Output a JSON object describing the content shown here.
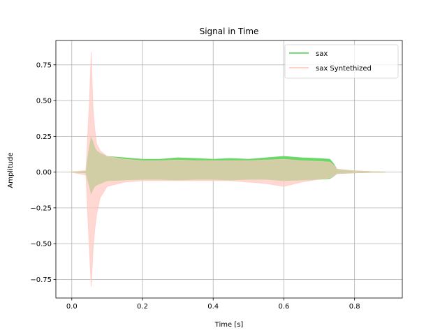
{
  "chart_data": {
    "type": "area",
    "title": "Signal in Time",
    "xlabel": "Time [s]",
    "ylabel": "Amplitude",
    "xlim": [
      -0.045,
      0.935
    ],
    "ylim": [
      -0.88,
      0.92
    ],
    "x_ticks": [
      0.0,
      0.2,
      0.4,
      0.6,
      0.8
    ],
    "x_tick_labels": [
      "0.0",
      "0.2",
      "0.4",
      "0.6",
      "0.8"
    ],
    "y_ticks": [
      -0.75,
      -0.5,
      -0.25,
      0.0,
      0.25,
      0.5,
      0.75
    ],
    "y_tick_labels": [
      "−0.75",
      "−0.50",
      "−0.25",
      "0.00",
      "0.25",
      "0.50",
      "0.75"
    ],
    "grid": true,
    "legend_position": "top-right",
    "series": [
      {
        "name": "sax",
        "color": "#66d966",
        "x": [
          0.0,
          0.04,
          0.05,
          0.055,
          0.06,
          0.065,
          0.07,
          0.08,
          0.1,
          0.15,
          0.2,
          0.25,
          0.3,
          0.35,
          0.4,
          0.45,
          0.5,
          0.55,
          0.6,
          0.65,
          0.7,
          0.73,
          0.74,
          0.75,
          0.8,
          0.85,
          0.885
        ],
        "upper": [
          0.002,
          0.005,
          0.18,
          0.24,
          0.21,
          0.17,
          0.15,
          0.13,
          0.11,
          0.1,
          0.09,
          0.09,
          0.1,
          0.095,
          0.09,
          0.095,
          0.09,
          0.1,
          0.11,
          0.1,
          0.095,
          0.09,
          0.06,
          0.02,
          0.008,
          0.003,
          0.001
        ],
        "lower": [
          -0.002,
          -0.005,
          -0.1,
          -0.15,
          -0.12,
          -0.1,
          -0.09,
          -0.08,
          -0.06,
          -0.055,
          -0.05,
          -0.05,
          -0.055,
          -0.05,
          -0.05,
          -0.055,
          -0.05,
          -0.05,
          -0.06,
          -0.055,
          -0.05,
          -0.045,
          -0.03,
          -0.01,
          -0.005,
          -0.002,
          -0.001
        ]
      },
      {
        "name": "sax Syntethized",
        "color": "#ffc8c0",
        "x": [
          0.0,
          0.04,
          0.05,
          0.055,
          0.06,
          0.065,
          0.07,
          0.08,
          0.1,
          0.15,
          0.2,
          0.25,
          0.3,
          0.35,
          0.4,
          0.45,
          0.5,
          0.55,
          0.6,
          0.65,
          0.7,
          0.73,
          0.74,
          0.75,
          0.8,
          0.85,
          0.885
        ],
        "upper": [
          0.002,
          0.01,
          0.5,
          0.84,
          0.45,
          0.3,
          0.2,
          0.15,
          0.11,
          0.09,
          0.08,
          0.08,
          0.085,
          0.08,
          0.08,
          0.08,
          0.08,
          0.085,
          0.09,
          0.08,
          0.075,
          0.07,
          0.05,
          0.02,
          0.008,
          0.003,
          0.001
        ],
        "lower": [
          -0.002,
          -0.02,
          -0.55,
          -0.8,
          -0.55,
          -0.4,
          -0.3,
          -0.18,
          -0.1,
          -0.07,
          -0.06,
          -0.06,
          -0.06,
          -0.06,
          -0.06,
          -0.06,
          -0.07,
          -0.08,
          -0.1,
          -0.07,
          -0.05,
          -0.04,
          -0.03,
          -0.01,
          -0.005,
          -0.002,
          -0.001
        ]
      }
    ]
  }
}
